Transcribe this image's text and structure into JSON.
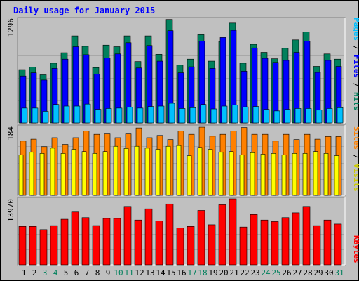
{
  "title": "Daily usage for January 2015",
  "colors": {
    "background": "#c0c0c0",
    "title": "#0000ff",
    "hits": "#00805c",
    "files": "#0000ff",
    "pages": "#00c0ff",
    "visits": "#ff8000",
    "sites": "#ffff00",
    "kbytes": "#ff0000",
    "weekend_day": "#00805c",
    "weekday_day": "#000000"
  },
  "chart_data": [
    {
      "type": "bar",
      "panel": "hits-files-pages",
      "categories": [
        "1",
        "2",
        "3",
        "4",
        "5",
        "6",
        "7",
        "8",
        "9",
        "10",
        "11",
        "12",
        "13",
        "14",
        "15",
        "16",
        "17",
        "18",
        "19",
        "20",
        "21",
        "22",
        "23",
        "24",
        "25",
        "26",
        "27",
        "28",
        "29",
        "30",
        "31"
      ],
      "weekend_days": [
        "3",
        "4",
        "10",
        "11",
        "17",
        "18",
        "24",
        "25",
        "31"
      ],
      "ymax_label": "1296",
      "ylim": [
        0,
        1296
      ],
      "series": [
        {
          "name": "Hits",
          "values": [
            665,
            695,
            600,
            745,
            875,
            1085,
            955,
            690,
            970,
            950,
            1085,
            765,
            1085,
            855,
            1290,
            720,
            795,
            1100,
            770,
            1015,
            1245,
            745,
            980,
            880,
            800,
            930,
            1035,
            1135,
            705,
            860,
            795
          ]
        },
        {
          "name": "Files",
          "values": [
            585,
            625,
            535,
            680,
            795,
            950,
            850,
            610,
            810,
            860,
            1000,
            685,
            965,
            770,
            1150,
            625,
            700,
            1020,
            680,
            1065,
            1155,
            645,
            935,
            805,
            755,
            780,
            880,
            1020,
            630,
            780,
            705
          ]
        },
        {
          "name": "Pages",
          "values": [
            185,
            185,
            145,
            230,
            210,
            210,
            235,
            170,
            180,
            185,
            195,
            185,
            205,
            210,
            245,
            180,
            190,
            230,
            175,
            210,
            225,
            200,
            205,
            170,
            150,
            170,
            180,
            180,
            160,
            180,
            190
          ]
        }
      ],
      "legend": [
        "Pages",
        "Files",
        "Hits"
      ]
    },
    {
      "type": "bar",
      "panel": "visits-sites",
      "categories": [
        "1",
        "2",
        "3",
        "4",
        "5",
        "6",
        "7",
        "8",
        "9",
        "10",
        "11",
        "12",
        "13",
        "14",
        "15",
        "16",
        "17",
        "18",
        "19",
        "20",
        "21",
        "22",
        "23",
        "24",
        "25",
        "26",
        "27",
        "28",
        "29",
        "30",
        "31"
      ],
      "ymax_label": "184",
      "ylim": [
        0,
        184
      ],
      "series": [
        {
          "name": "Visits",
          "values": [
            145,
            150,
            130,
            154,
            136,
            154,
            172,
            163,
            164,
            154,
            164,
            180,
            154,
            160,
            149,
            172,
            163,
            182,
            158,
            163,
            172,
            181,
            163,
            163,
            145,
            163,
            149,
            163,
            150,
            157,
            157
          ]
        },
        {
          "name": "Sites",
          "values": [
            108,
            115,
            112,
            126,
            112,
            123,
            117,
            112,
            117,
            131,
            125,
            131,
            126,
            123,
            131,
            133,
            106,
            128,
            123,
            115,
            117,
            108,
            114,
            110,
            112,
            108,
            112,
            112,
            117,
            112,
            106
          ]
        }
      ],
      "legend": [
        "Sites",
        "Visits"
      ]
    },
    {
      "type": "bar",
      "panel": "kbytes",
      "categories": [
        "1",
        "2",
        "3",
        "4",
        "5",
        "6",
        "7",
        "8",
        "9",
        "10",
        "11",
        "12",
        "13",
        "14",
        "15",
        "16",
        "17",
        "18",
        "19",
        "20",
        "21",
        "22",
        "23",
        "24",
        "25",
        "26",
        "27",
        "28",
        "29",
        "30",
        "31"
      ],
      "ymax_label": "13970",
      "ylim": [
        0,
        13970
      ],
      "series": [
        {
          "name": "KBytes",
          "values": [
            8130,
            8130,
            7450,
            8300,
            9650,
            11180,
            9990,
            8310,
            9820,
            9820,
            12360,
            9480,
            11860,
            9310,
            12890,
            7800,
            8130,
            11520,
            8480,
            12720,
            13970,
            8000,
            10650,
            9480,
            9150,
            9990,
            11010,
            12360,
            8300,
            9480,
            8630
          ]
        }
      ],
      "legend": [
        "KBytes"
      ]
    }
  ]
}
